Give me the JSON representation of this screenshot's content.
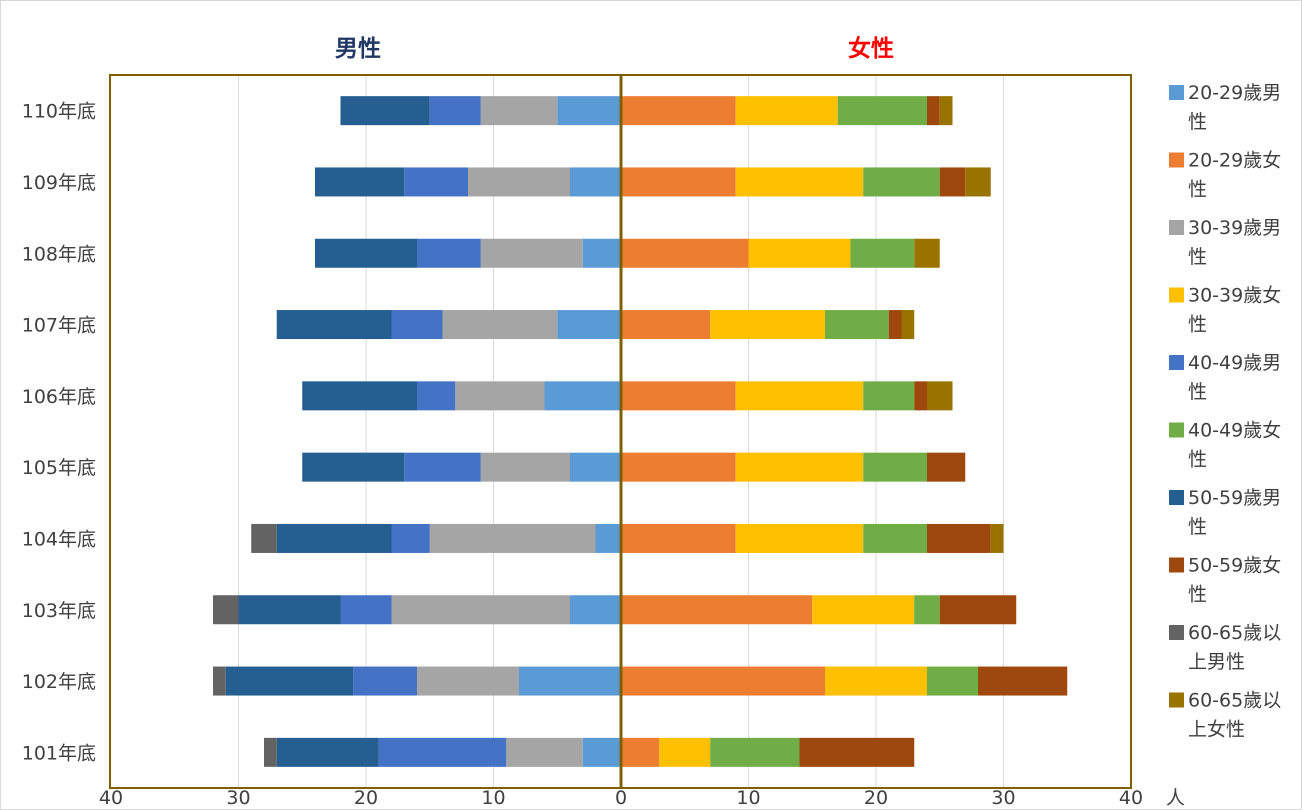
{
  "chart_data": {
    "type": "bar",
    "orientation": "horizontal",
    "layout": "population-pyramid (left = male, right = female)",
    "categories": [
      "110年底",
      "109年底",
      "108年底",
      "107年底",
      "106年底",
      "105年底",
      "104年底",
      "103年底",
      "102年底",
      "101年底"
    ],
    "left_title": "男性",
    "right_title": "女性",
    "unit_label": "人",
    "x_ticks": [
      40,
      30,
      20,
      10,
      0,
      10,
      20,
      30,
      40
    ],
    "xlim": [
      -40,
      40
    ],
    "grid": "vertical",
    "legend_position": "right",
    "colors": {
      "left_title": "#1f3864",
      "right_title": "#ff0000",
      "axis_frame": "#7f6000"
    },
    "series": [
      {
        "name": "20-29歲男性",
        "side": "male",
        "color": "#5b9bd5",
        "values": [
          5,
          4,
          3,
          5,
          6,
          4,
          2,
          4,
          8,
          3
        ]
      },
      {
        "name": "20-29歲女性",
        "side": "female",
        "color": "#ed7d31",
        "values": [
          9,
          9,
          10,
          7,
          9,
          9,
          9,
          15,
          16,
          3
        ]
      },
      {
        "name": "30-39歲男性",
        "side": "male",
        "color": "#a5a5a5",
        "values": [
          6,
          8,
          8,
          9,
          7,
          7,
          13,
          14,
          8,
          6
        ]
      },
      {
        "name": "30-39歲女性",
        "side": "female",
        "color": "#ffc000",
        "values": [
          8,
          10,
          8,
          9,
          10,
          10,
          10,
          8,
          8,
          4
        ]
      },
      {
        "name": "40-49歲男性",
        "side": "male",
        "color": "#4472c4",
        "values": [
          4,
          5,
          5,
          4,
          3,
          6,
          3,
          4,
          5,
          10
        ]
      },
      {
        "name": "40-49歲女性",
        "side": "female",
        "color": "#70ad47",
        "values": [
          7,
          6,
          5,
          5,
          4,
          5,
          5,
          2,
          4,
          7
        ]
      },
      {
        "name": "50-59歲男性",
        "side": "male",
        "color": "#255e91",
        "values": [
          7,
          7,
          8,
          9,
          9,
          8,
          9,
          8,
          10,
          8
        ]
      },
      {
        "name": "50-59歲女性",
        "side": "female",
        "color": "#9e480e",
        "values": [
          1,
          2,
          0,
          1,
          1,
          3,
          5,
          6,
          7,
          9
        ]
      },
      {
        "name": "60-65歲以上男性",
        "side": "male",
        "color": "#636363",
        "values": [
          0,
          0,
          0,
          0,
          0,
          0,
          2,
          2,
          1,
          1
        ]
      },
      {
        "name": "60-65歲以上女性",
        "side": "female",
        "color": "#997300",
        "values": [
          1,
          2,
          2,
          1,
          2,
          0,
          1,
          0,
          0,
          0
        ]
      }
    ],
    "legend_entries": [
      {
        "line1": "20-29歲男",
        "line2": "性"
      },
      {
        "line1": "20-29歲女",
        "line2": "性"
      },
      {
        "line1": "30-39歲男",
        "line2": "性"
      },
      {
        "line1": "30-39歲女",
        "line2": "性"
      },
      {
        "line1": "40-49歲男",
        "line2": "性"
      },
      {
        "line1": "40-49歲女",
        "line2": "性"
      },
      {
        "line1": "50-59歲男",
        "line2": "性"
      },
      {
        "line1": "50-59歲女",
        "line2": "性"
      },
      {
        "line1": "60-65歲以",
        "line2": "上男性"
      },
      {
        "line1": "60-65歲以",
        "line2": "上女性"
      }
    ]
  }
}
